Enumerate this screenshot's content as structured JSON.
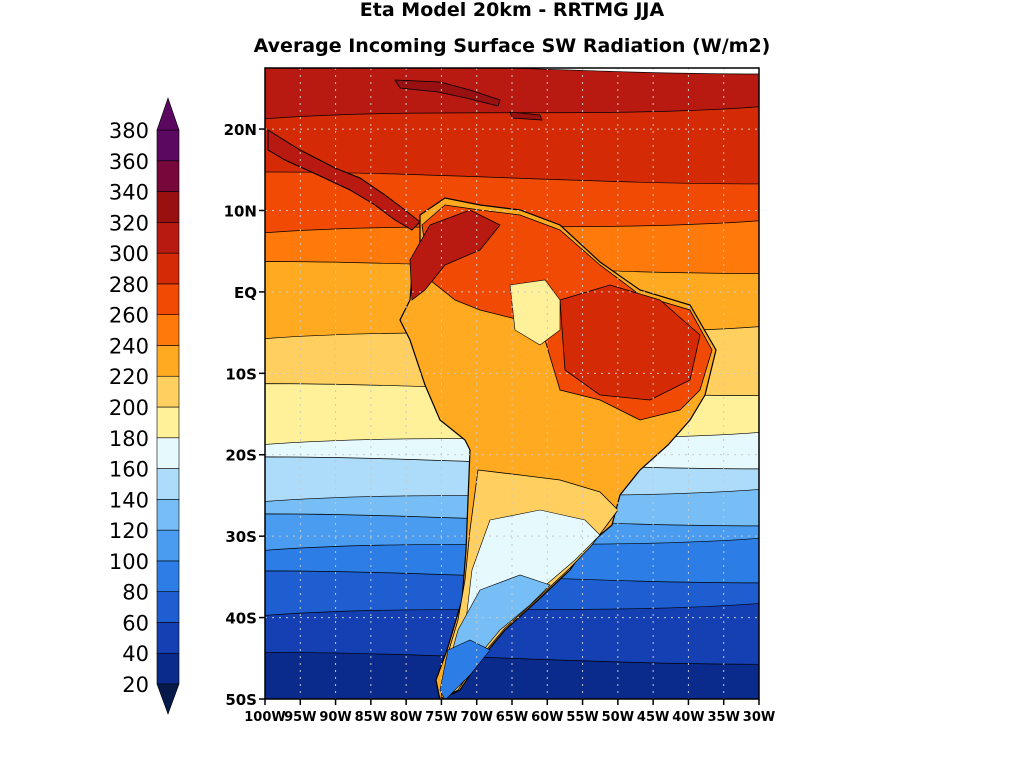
{
  "title": "Eta Model 20km - RRTMG JJA",
  "subtitle": "Average Incoming Surface SW Radiation (W/m2)",
  "colorbar": {
    "levels": [
      20,
      40,
      60,
      80,
      100,
      120,
      140,
      160,
      180,
      200,
      220,
      240,
      260,
      280,
      300,
      320,
      340,
      360,
      380
    ],
    "labels": [
      "20",
      "40",
      "60",
      "80",
      "100",
      "120",
      "140",
      "160",
      "180",
      "200",
      "220",
      "240",
      "260",
      "280",
      "300",
      "320",
      "340",
      "360",
      "380"
    ],
    "colors": [
      "#061a4a",
      "#0a2a8c",
      "#1440b4",
      "#1e5ed0",
      "#2c7ee6",
      "#4a9cf0",
      "#78bef6",
      "#acdcfa",
      "#e6fafe",
      "#fff09a",
      "#ffd060",
      "#ffaa20",
      "#ff7a0a",
      "#f04a04",
      "#d42a06",
      "#b81a12",
      "#981010",
      "#78083c",
      "#5a0860"
    ],
    "extend": "both"
  },
  "map": {
    "lat_ticks": [
      "20N",
      "10N",
      "EQ",
      "10S",
      "20S",
      "30S",
      "40S",
      "50S"
    ],
    "lon_ticks": [
      "100W",
      "95W",
      "90W",
      "85W",
      "80W",
      "75W",
      "70W",
      "65W",
      "60W",
      "55W",
      "50W",
      "45W",
      "40W",
      "35W",
      "30W"
    ],
    "lat_range": [
      -50,
      27.5
    ],
    "lon_range": [
      -100,
      -30
    ],
    "grid": true,
    "palette": {
      "ocean_warm": "#ff7a0a",
      "land_hot": "#d42a06",
      "land_mid": "#ffaa20",
      "caribbean": "#b81a12",
      "coastline": "#000000",
      "gridline": "#c8c8c8"
    }
  }
}
